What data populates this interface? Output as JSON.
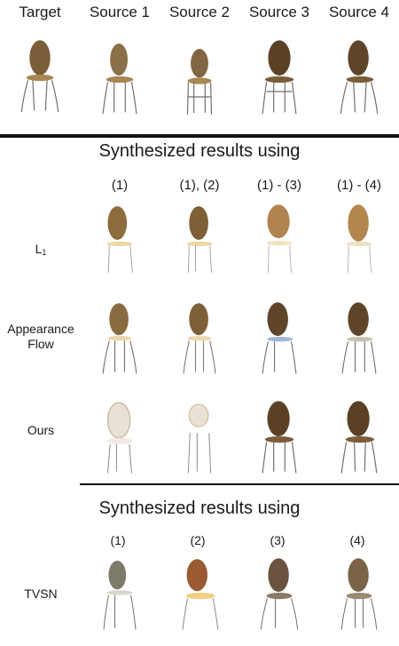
{
  "header": [
    "Target",
    "Source 1",
    "Source 2",
    "Source 3",
    "Source 4"
  ],
  "section1": {
    "title": "Synthesized results using",
    "columns": [
      "(1)",
      "(1), (2)",
      "(1) - (3)",
      "(1) - (4)"
    ],
    "rows": [
      {
        "label": "L",
        "label_sub": "1"
      },
      {
        "label": "Appearance",
        "label2": "Flow"
      },
      {
        "label": "Ours"
      }
    ]
  },
  "section2": {
    "title": "Synthesized results using",
    "columns": [
      "(1)",
      "(2)",
      "(3)",
      "(4)"
    ],
    "rows": [
      {
        "label": "TVSN"
      }
    ]
  },
  "colors": {
    "seat_wood": "#7a5e3a",
    "seat_wood_light": "#c79a55",
    "frame_metal": "#6d6d6d",
    "blurry_white": "#e8e2d6"
  }
}
